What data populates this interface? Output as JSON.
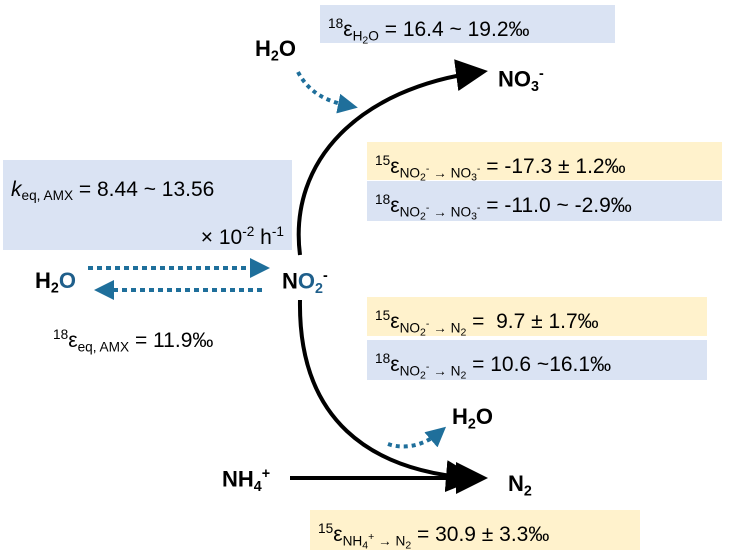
{
  "molecules": [
    {
      "parts": [
        [
          "H",
          "n"
        ],
        [
          "2",
          "sub"
        ],
        [
          "O",
          "n"
        ]
      ],
      "color": "#000000"
    },
    {
      "parts": [
        [
          "NO",
          "n"
        ],
        [
          "3",
          "sub"
        ],
        [
          "-",
          "sup"
        ]
      ],
      "color": "#000000"
    },
    {
      "parts": [
        [
          "N",
          "n"
        ],
        [
          "O",
          "n blue"
        ],
        [
          "2",
          "sub blue"
        ],
        [
          "-",
          "sup"
        ]
      ],
      "color": "#000000"
    },
    {
      "parts": [
        [
          "H",
          "n"
        ],
        [
          "2",
          "sub"
        ],
        [
          "O",
          "n blue"
        ]
      ],
      "color": "#000000"
    },
    {
      "parts": [
        [
          "H",
          "n"
        ],
        [
          "2",
          "sub"
        ],
        [
          "O",
          "n"
        ]
      ],
      "color": "#000000"
    },
    {
      "parts": [
        [
          "NH",
          "n"
        ],
        [
          "4",
          "sub"
        ],
        [
          "+",
          "sup"
        ]
      ],
      "color": "#000000"
    },
    {
      "parts": [
        [
          "N",
          "n"
        ],
        [
          "2",
          "sub"
        ]
      ],
      "color": "#000000"
    }
  ],
  "labels": [
    {
      "bg": "#dae3f3",
      "lines": [
        [
          [
            "18",
            "sup"
          ],
          [
            "ε",
            "n"
          ],
          [
            "H",
            "sub"
          ],
          [
            "2",
            "subsub"
          ],
          [
            "O",
            "sub"
          ],
          [
            " = 16.4 ~ 19.2‰",
            "n"
          ]
        ]
      ]
    },
    {
      "bg": "#fff2cc",
      "lines": [
        [
          [
            "15",
            "sup"
          ],
          [
            "ε",
            "n"
          ],
          [
            "NO",
            "sub"
          ],
          [
            "2",
            "subsub"
          ],
          [
            "-",
            "subsup"
          ],
          [
            " → NO",
            "sub"
          ],
          [
            "3",
            "subsub"
          ],
          [
            "-",
            "subsup"
          ],
          [
            " = -17.3 ± 1.2‰",
            "n"
          ]
        ]
      ]
    },
    {
      "bg": "#dae3f3",
      "lines": [
        [
          [
            "18",
            "sup"
          ],
          [
            "ε",
            "n"
          ],
          [
            "NO",
            "sub"
          ],
          [
            "2",
            "subsub"
          ],
          [
            "-",
            "subsup"
          ],
          [
            " → NO",
            "sub"
          ],
          [
            "3",
            "subsub"
          ],
          [
            "-",
            "subsup"
          ],
          [
            " = -11.0 ~ -2.9‰",
            "n"
          ]
        ]
      ]
    },
    {
      "bg": "#dae3f3",
      "lines": [
        [
          [
            "k",
            "n ital"
          ],
          [
            "eq, AMX",
            "sub"
          ],
          [
            " = 8.44 ~ 13.56",
            "n"
          ]
        ],
        [
          [
            "× 10",
            "n"
          ],
          [
            "-2",
            "sup"
          ],
          [
            " h",
            "n"
          ],
          [
            "-1",
            "sup"
          ]
        ]
      ]
    },
    {
      "bg": "#ffffff",
      "lines": [
        [
          [
            "18",
            "sup"
          ],
          [
            "ε",
            "n"
          ],
          [
            "eq, AMX",
            "sub"
          ],
          [
            " = 11.9‰",
            "n"
          ]
        ]
      ]
    },
    {
      "bg": "#fff2cc",
      "lines": [
        [
          [
            "15",
            "sup"
          ],
          [
            "ε",
            "n"
          ],
          [
            "NO",
            "sub"
          ],
          [
            "2",
            "subsub"
          ],
          [
            "-",
            "subsup"
          ],
          [
            " → N",
            "sub"
          ],
          [
            "2",
            "subsub"
          ],
          [
            " =  9.7 ± 1.7‰",
            "n"
          ]
        ]
      ]
    },
    {
      "bg": "#dae3f3",
      "lines": [
        [
          [
            "18",
            "sup"
          ],
          [
            "ε",
            "n"
          ],
          [
            "NO",
            "sub"
          ],
          [
            "2",
            "subsub"
          ],
          [
            "-",
            "subsup"
          ],
          [
            " → N",
            "sub"
          ],
          [
            "2",
            "subsub"
          ],
          [
            " = 10.6 ~16.1‰",
            "n"
          ]
        ]
      ]
    },
    {
      "bg": "#fff2cc",
      "lines": [
        [
          [
            "15",
            "sup"
          ],
          [
            "ε",
            "n"
          ],
          [
            "NH",
            "sub"
          ],
          [
            "4",
            "subsub"
          ],
          [
            "+",
            "subsup"
          ],
          [
            " → N",
            "sub"
          ],
          [
            "2",
            "subsub"
          ],
          [
            " = 30.9 ± 3.3‰",
            "n"
          ]
        ]
      ]
    }
  ]
}
